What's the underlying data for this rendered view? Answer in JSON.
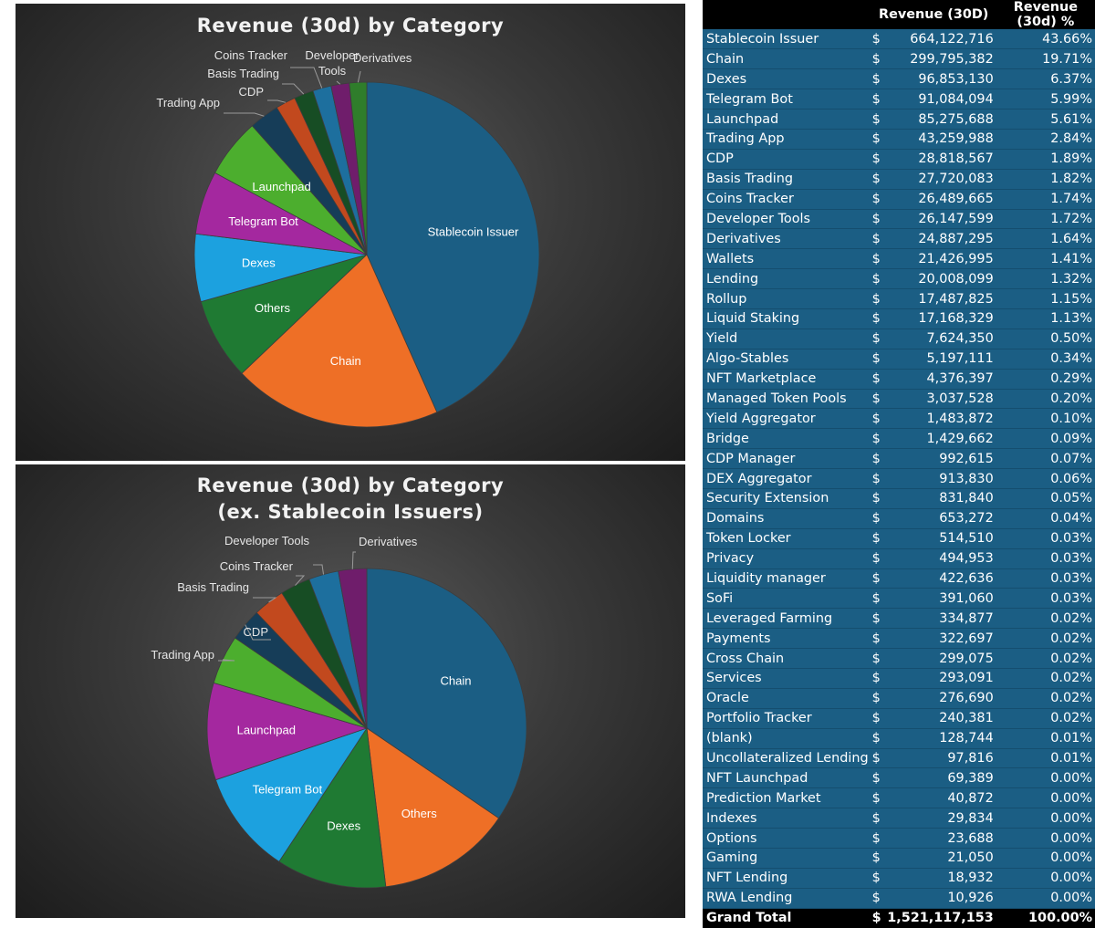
{
  "chart_data": [
    {
      "type": "pie",
      "title": "Revenue (30d) by Category",
      "start_angle_deg": 0,
      "direction": "clockwise",
      "slices": [
        {
          "label": "Stablecoin Issuer",
          "value": 664122716,
          "color": "#1b5e84",
          "label_pos": "inside"
        },
        {
          "label": "Chain",
          "value": 299795382,
          "color": "#ee6f26",
          "label_pos": "inside"
        },
        {
          "label": "Others",
          "value": 117779520,
          "color": "#1f7a33",
          "label_pos": "inside"
        },
        {
          "label": "Dexes",
          "value": 96853130,
          "color": "#1ca1df",
          "label_pos": "inside"
        },
        {
          "label": "Telegram Bot",
          "value": 91084094,
          "color": "#a4289f",
          "label_pos": "inside"
        },
        {
          "label": "Launchpad",
          "value": 85275688,
          "color": "#4cae2e",
          "label_pos": "inside"
        },
        {
          "label": "Trading App",
          "value": 43259988,
          "color": "#163d58",
          "label_pos": "outside"
        },
        {
          "label": "CDP",
          "value": 28818567,
          "color": "#c2491e",
          "label_pos": "outside"
        },
        {
          "label": "Basis Trading",
          "value": 27720083,
          "color": "#174d24",
          "label_pos": "outside"
        },
        {
          "label": "Coins Tracker",
          "value": 26489665,
          "color": "#1d6f9e",
          "label_pos": "outside"
        },
        {
          "label": "Developer Tools",
          "value": 26147599,
          "color": "#6f1d6b",
          "label_pos": "outside"
        },
        {
          "label": "Derivatives",
          "value": 24887295,
          "color": "#2f7d2b",
          "label_pos": "outside"
        }
      ]
    },
    {
      "type": "pie",
      "title": "Revenue (30d) by Category",
      "subtitle": "(ex. Stablecoin Issuers)",
      "start_angle_deg": 0,
      "direction": "clockwise",
      "slices": [
        {
          "label": "Chain",
          "value": 299795382,
          "color": "#1b5e84",
          "label_pos": "inside"
        },
        {
          "label": "Others",
          "value": 117779520,
          "color": "#ee6f26",
          "label_pos": "inside"
        },
        {
          "label": "Dexes",
          "value": 96853130,
          "color": "#1f7a33",
          "label_pos": "inside"
        },
        {
          "label": "Telegram Bot",
          "value": 91084094,
          "color": "#1ca1df",
          "label_pos": "inside"
        },
        {
          "label": "Launchpad",
          "value": 85275688,
          "color": "#a4289f",
          "label_pos": "inside"
        },
        {
          "label": "Trading App",
          "value": 43259988,
          "color": "#4cae2e",
          "label_pos": "outside"
        },
        {
          "label": "CDP",
          "value": 28818567,
          "color": "#163d58",
          "label_pos": "outside"
        },
        {
          "label": "Basis Trading",
          "value": 27720083,
          "color": "#c2491e",
          "label_pos": "outside"
        },
        {
          "label": "Coins Tracker",
          "value": 26489665,
          "color": "#174d24",
          "label_pos": "outside"
        },
        {
          "label": "Developer Tools",
          "value": 26147599,
          "color": "#1d6f9e",
          "label_pos": "outside"
        },
        {
          "label": "Derivatives",
          "value": 24887295,
          "color": "#6f1d6b",
          "label_pos": "outside"
        }
      ]
    },
    {
      "type": "table",
      "columns": [
        "",
        "Revenue (30D)",
        "Revenue (30d) %"
      ],
      "currency_symbol": "$",
      "rows": [
        [
          "Stablecoin Issuer",
          "664,122,716",
          "43.66%"
        ],
        [
          "Chain",
          "299,795,382",
          "19.71%"
        ],
        [
          "Dexes",
          "96,853,130",
          "6.37%"
        ],
        [
          "Telegram Bot",
          "91,084,094",
          "5.99%"
        ],
        [
          "Launchpad",
          "85,275,688",
          "5.61%"
        ],
        [
          "Trading App",
          "43,259,988",
          "2.84%"
        ],
        [
          "CDP",
          "28,818,567",
          "1.89%"
        ],
        [
          "Basis Trading",
          "27,720,083",
          "1.82%"
        ],
        [
          "Coins Tracker",
          "26,489,665",
          "1.74%"
        ],
        [
          "Developer Tools",
          "26,147,599",
          "1.72%"
        ],
        [
          "Derivatives",
          "24,887,295",
          "1.64%"
        ],
        [
          "Wallets",
          "21,426,995",
          "1.41%"
        ],
        [
          "Lending",
          "20,008,099",
          "1.32%"
        ],
        [
          "Rollup",
          "17,487,825",
          "1.15%"
        ],
        [
          "Liquid Staking",
          "17,168,329",
          "1.13%"
        ],
        [
          "Yield",
          "7,624,350",
          "0.50%"
        ],
        [
          "Algo-Stables",
          "5,197,111",
          "0.34%"
        ],
        [
          "NFT Marketplace",
          "4,376,397",
          "0.29%"
        ],
        [
          "Managed Token Pools",
          "3,037,528",
          "0.20%"
        ],
        [
          "Yield Aggregator",
          "1,483,872",
          "0.10%"
        ],
        [
          "Bridge",
          "1,429,662",
          "0.09%"
        ],
        [
          "CDP Manager",
          "992,615",
          "0.07%"
        ],
        [
          "DEX Aggregator",
          "913,830",
          "0.06%"
        ],
        [
          "Security Extension",
          "831,840",
          "0.05%"
        ],
        [
          "Domains",
          "653,272",
          "0.04%"
        ],
        [
          "Token Locker",
          "514,510",
          "0.03%"
        ],
        [
          "Privacy",
          "494,953",
          "0.03%"
        ],
        [
          "Liquidity manager",
          "422,636",
          "0.03%"
        ],
        [
          "SoFi",
          "391,060",
          "0.03%"
        ],
        [
          "Leveraged Farming",
          "334,877",
          "0.02%"
        ],
        [
          "Payments",
          "322,697",
          "0.02%"
        ],
        [
          "Cross Chain",
          "299,075",
          "0.02%"
        ],
        [
          "Services",
          "293,091",
          "0.02%"
        ],
        [
          "Oracle",
          "276,690",
          "0.02%"
        ],
        [
          "Portfolio Tracker",
          "240,381",
          "0.02%"
        ],
        [
          "(blank)",
          "128,744",
          "0.01%"
        ],
        [
          "Uncollateralized Lending",
          "97,816",
          "0.01%"
        ],
        [
          "NFT Launchpad",
          "69,389",
          "0.00%"
        ],
        [
          "Prediction Market",
          "40,872",
          "0.00%"
        ],
        [
          "Indexes",
          "29,834",
          "0.00%"
        ],
        [
          "Options",
          "23,688",
          "0.00%"
        ],
        [
          "Gaming",
          "21,050",
          "0.00%"
        ],
        [
          "NFT Lending",
          "18,932",
          "0.00%"
        ],
        [
          "RWA Lending",
          "10,926",
          "0.00%"
        ]
      ],
      "total": {
        "label": "Grand Total",
        "currency": "$",
        "value": "1,521,117,153",
        "pct": "100.00%"
      }
    }
  ]
}
